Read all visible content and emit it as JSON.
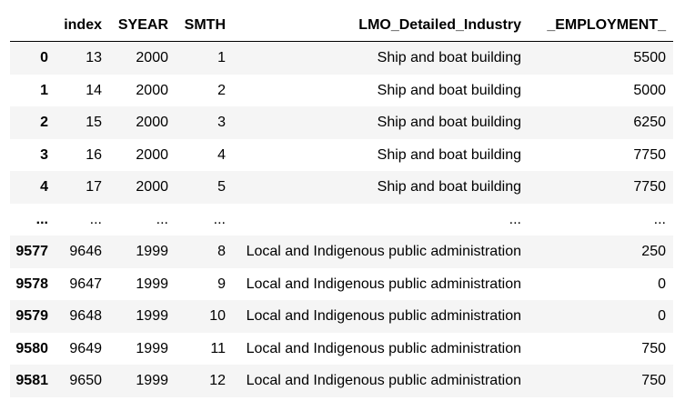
{
  "table": {
    "columns": [
      "",
      "index",
      "SYEAR",
      "SMTH",
      "LMO_Detailed_Industry",
      "_EMPLOYMENT_"
    ],
    "rows": [
      {
        "label": "0",
        "cells": [
          "13",
          "2000",
          "1",
          "Ship and boat building",
          "5500"
        ]
      },
      {
        "label": "1",
        "cells": [
          "14",
          "2000",
          "2",
          "Ship and boat building",
          "5000"
        ]
      },
      {
        "label": "2",
        "cells": [
          "15",
          "2000",
          "3",
          "Ship and boat building",
          "6250"
        ]
      },
      {
        "label": "3",
        "cells": [
          "16",
          "2000",
          "4",
          "Ship and boat building",
          "7750"
        ]
      },
      {
        "label": "4",
        "cells": [
          "17",
          "2000",
          "5",
          "Ship and boat building",
          "7750"
        ]
      },
      {
        "label": "...",
        "cells": [
          "...",
          "...",
          "...",
          "...",
          "..."
        ]
      },
      {
        "label": "9577",
        "cells": [
          "9646",
          "1999",
          "8",
          "Local and Indigenous public administration",
          "250"
        ]
      },
      {
        "label": "9578",
        "cells": [
          "9647",
          "1999",
          "9",
          "Local and Indigenous public administration",
          "0"
        ]
      },
      {
        "label": "9579",
        "cells": [
          "9648",
          "1999",
          "10",
          "Local and Indigenous public administration",
          "0"
        ]
      },
      {
        "label": "9580",
        "cells": [
          "9649",
          "1999",
          "11",
          "Local and Indigenous public administration",
          "750"
        ]
      },
      {
        "label": "9581",
        "cells": [
          "9650",
          "1999",
          "12",
          "Local and Indigenous public administration",
          "750"
        ]
      }
    ]
  }
}
